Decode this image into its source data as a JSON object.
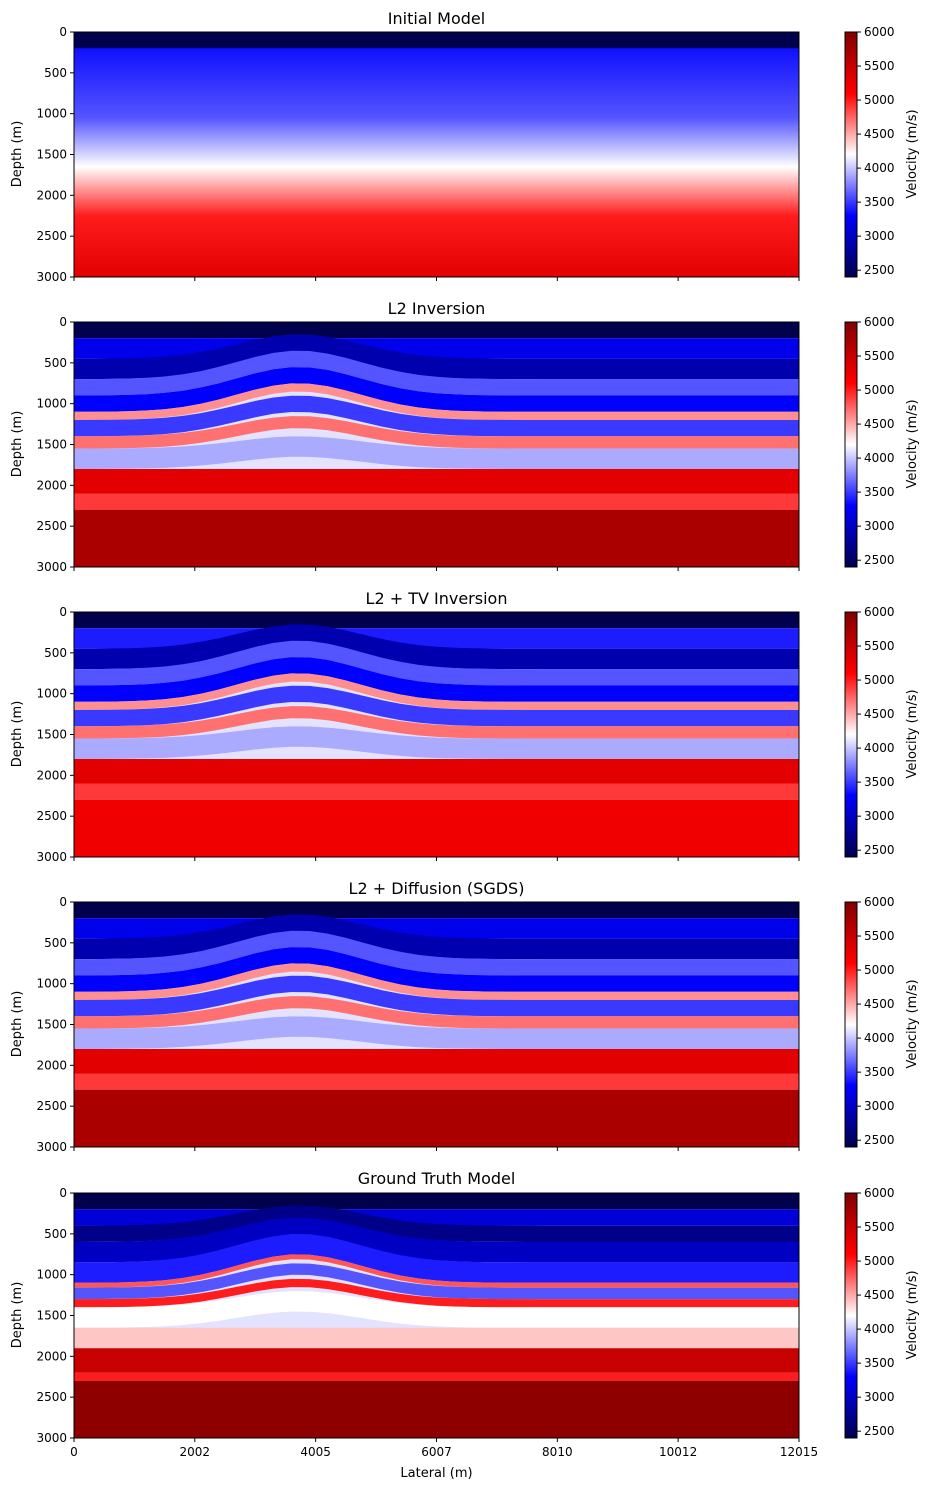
{
  "figure": {
    "xlabel": "Lateral (m)",
    "xtick_labels": [
      "0",
      "2002",
      "4005",
      "6007",
      "8010",
      "10012",
      "12015"
    ],
    "colormap": "seismic",
    "colormap_colors": [
      "#00004c",
      "#0000ff",
      "#ffffff",
      "#ff0000",
      "#800000"
    ]
  },
  "chart_data": [
    {
      "type": "heatmap",
      "title": "Initial Model",
      "ylabel": "Depth (m)",
      "xlim": [
        0,
        12015
      ],
      "ylim": [
        3000,
        0
      ],
      "yticks": [
        0,
        500,
        1000,
        1500,
        2000,
        2500,
        3000
      ],
      "colorbar": {
        "label": "Velocity (m/s)",
        "range": [
          2400,
          6000
        ],
        "ticks": [
          2500,
          3000,
          3500,
          4000,
          4500,
          5000,
          5500,
          6000
        ]
      },
      "grid": false
    },
    {
      "type": "heatmap",
      "title": "L2 Inversion",
      "ylabel": "Depth (m)",
      "xlim": [
        0,
        12015
      ],
      "ylim": [
        3000,
        0
      ],
      "yticks": [
        0,
        500,
        1000,
        1500,
        2000,
        2500,
        3000
      ],
      "colorbar": {
        "label": "Velocity (m/s)",
        "range": [
          2400,
          6000
        ],
        "ticks": [
          2500,
          3000,
          3500,
          4000,
          4500,
          5000,
          5500,
          6000
        ]
      },
      "grid": false
    },
    {
      "type": "heatmap",
      "title": "L2 + TV Inversion",
      "ylabel": "Depth (m)",
      "xlim": [
        0,
        12015
      ],
      "ylim": [
        3000,
        0
      ],
      "yticks": [
        0,
        500,
        1000,
        1500,
        2000,
        2500,
        3000
      ],
      "colorbar": {
        "label": "Velocity (m/s)",
        "range": [
          2400,
          6000
        ],
        "ticks": [
          2500,
          3000,
          3500,
          4000,
          4500,
          5000,
          5500,
          6000
        ]
      },
      "grid": false
    },
    {
      "type": "heatmap",
      "title": "L2 + Diffusion (SGDS)",
      "ylabel": "Depth (m)",
      "xlim": [
        0,
        12015
      ],
      "ylim": [
        3000,
        0
      ],
      "yticks": [
        0,
        500,
        1000,
        1500,
        2000,
        2500,
        3000
      ],
      "colorbar": {
        "label": "Velocity (m/s)",
        "range": [
          2400,
          6000
        ],
        "ticks": [
          2500,
          3000,
          3500,
          4000,
          4500,
          5000,
          5500,
          6000
        ]
      },
      "grid": false
    },
    {
      "type": "heatmap",
      "title": "Ground Truth Model",
      "ylabel": "Depth (m)",
      "xlim": [
        0,
        12015
      ],
      "ylim": [
        3000,
        0
      ],
      "yticks": [
        0,
        500,
        1000,
        1500,
        2000,
        2500,
        3000
      ],
      "colorbar": {
        "label": "Velocity (m/s)",
        "range": [
          2400,
          6000
        ],
        "ticks": [
          2500,
          3000,
          3500,
          4000,
          4500,
          5000,
          5500,
          6000
        ]
      },
      "grid": false
    }
  ]
}
